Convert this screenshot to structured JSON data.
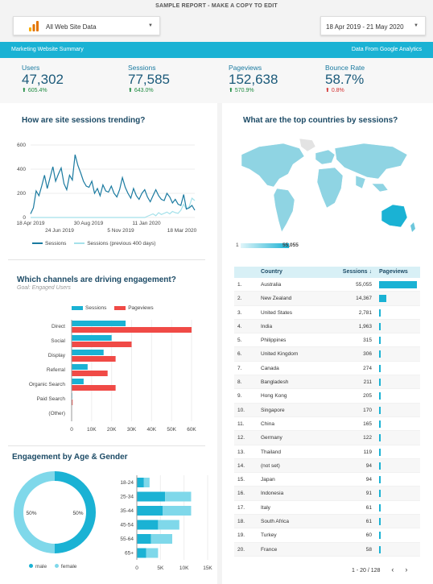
{
  "report_banner": "SAMPLE REPORT - MAKE A COPY TO EDIT",
  "property_selector": {
    "value": "All Web Site Data"
  },
  "date_range": {
    "value": "18 Apr 2019 - 21 May 2020"
  },
  "header_bar": {
    "left": "Marketing Website Summary",
    "right": "Data From Google Analytics"
  },
  "kpis": [
    {
      "label": "Users",
      "value": "47,302",
      "delta": "605.4%",
      "direction": "up"
    },
    {
      "label": "Sessions",
      "value": "77,585",
      "delta": "643.0%",
      "direction": "up"
    },
    {
      "label": "Pageviews",
      "value": "152,638",
      "delta": "570.9%",
      "direction": "up"
    },
    {
      "label": "Bounce Rate",
      "value": "58.7%",
      "delta": "0.8%",
      "direction": "up-bad"
    }
  ],
  "colors": {
    "accent": "#1ab2d4",
    "dark_teal": "#1a7aa0",
    "red": "#f04a46",
    "light": "#7fd8ea",
    "good": "#1d8a40",
    "bad": "#d32f2f"
  },
  "sessions_trend": {
    "title": "How are site sessions trending?",
    "legend": [
      "Sessions",
      "Sessions (previous 400 days)"
    ],
    "chart_data": {
      "type": "line",
      "y_ticks": [
        "0",
        "200",
        "400",
        "600"
      ],
      "ylim": [
        0,
        600
      ],
      "x_ticks_top": [
        "18 Apr 2019",
        "30 Aug 2019",
        "11 Jan 2020"
      ],
      "x_ticks_bottom": [
        "24 Jun 2019",
        "5 Nov 2019",
        "18 Mar 2020"
      ],
      "series": [
        {
          "name": "Sessions",
          "values": [
            30,
            80,
            220,
            180,
            260,
            350,
            240,
            330,
            420,
            300,
            360,
            410,
            280,
            230,
            350,
            310,
            520,
            430,
            370,
            300,
            260,
            250,
            300,
            200,
            240,
            180,
            270,
            220,
            210,
            260,
            200,
            170,
            230,
            330,
            250,
            200,
            160,
            240,
            180,
            150,
            200,
            230,
            170,
            130,
            180,
            230,
            180,
            150,
            140,
            200,
            170,
            120,
            150,
            110,
            100,
            190,
            70,
            80,
            100,
            60
          ]
        },
        {
          "name": "Sessions (previous 400 days)",
          "values": [
            0,
            0,
            0,
            0,
            0,
            0,
            0,
            0,
            0,
            0,
            0,
            0,
            0,
            0,
            0,
            0,
            0,
            0,
            0,
            0,
            0,
            0,
            0,
            0,
            0,
            0,
            0,
            0,
            0,
            0,
            0,
            0,
            0,
            0,
            0,
            0,
            0,
            0,
            0,
            0,
            0,
            0,
            10,
            20,
            30,
            15,
            40,
            25,
            35,
            45,
            30,
            50,
            40,
            35,
            60,
            110,
            70,
            90,
            160,
            140
          ]
        }
      ]
    }
  },
  "countries_map": {
    "title": "What are the top countries by sessions?",
    "scale_min": "1",
    "scale_max": "55,055"
  },
  "channels": {
    "title": "Which channels are driving engagement?",
    "subtitle": "Goal: Engaged Users",
    "legend": [
      "Sessions",
      "Pageviews"
    ],
    "chart_data": {
      "type": "bar",
      "orientation": "horizontal",
      "categories": [
        "Direct",
        "Social",
        "Display",
        "Referral",
        "Organic Search",
        "Paid Search",
        "(Other)"
      ],
      "x_ticks": [
        "0",
        "10K",
        "20K",
        "30K",
        "40K",
        "50K",
        "60K"
      ],
      "xlim": [
        0,
        60000
      ],
      "series": [
        {
          "name": "Sessions",
          "values": [
            27000,
            20000,
            16000,
            8000,
            6000,
            300,
            100
          ]
        },
        {
          "name": "Pageviews",
          "values": [
            60000,
            30000,
            22000,
            18000,
            22000,
            500,
            200
          ]
        }
      ]
    }
  },
  "age_gender": {
    "title": "Engagement by Age & Gender",
    "donut": {
      "chart_data": {
        "type": "pie",
        "slices": [
          {
            "name": "male",
            "value": 50
          },
          {
            "name": "female",
            "value": 50
          }
        ]
      },
      "labels": [
        "50%",
        "50%"
      ],
      "legend": [
        "male",
        "female"
      ]
    },
    "bars": {
      "chart_data": {
        "type": "bar",
        "orientation": "horizontal",
        "stacked": true,
        "categories": [
          "18-24",
          "25-34",
          "35-44",
          "45-54",
          "55-64",
          "65+"
        ],
        "x_ticks": [
          "0",
          "5K",
          "10K",
          "15K"
        ],
        "xlim": [
          0,
          15000
        ],
        "series": [
          {
            "name": "male",
            "values": [
              1500,
              6000,
              5500,
              4500,
              3000,
              2000
            ]
          },
          {
            "name": "female",
            "values": [
              1200,
              5500,
              6000,
              4500,
              4500,
              2500
            ]
          }
        ]
      }
    }
  },
  "country_table": {
    "headers": [
      "Country",
      "Sessions",
      "Pageviews"
    ],
    "sort_indicator": "↓",
    "rows": [
      {
        "rank": "1.",
        "country": "Australia",
        "sessions": "55,055",
        "pv": 1.0
      },
      {
        "rank": "2.",
        "country": "New Zealand",
        "sessions": "14,367",
        "pv": 0.2
      },
      {
        "rank": "3.",
        "country": "United States",
        "sessions": "2,781",
        "pv": 0.04
      },
      {
        "rank": "4.",
        "country": "India",
        "sessions": "1,963",
        "pv": 0.04
      },
      {
        "rank": "5.",
        "country": "Philippines",
        "sessions": "315",
        "pv": 0.02
      },
      {
        "rank": "6.",
        "country": "United Kingdom",
        "sessions": "306",
        "pv": 0.02
      },
      {
        "rank": "7.",
        "country": "Canada",
        "sessions": "274",
        "pv": 0.02
      },
      {
        "rank": "8.",
        "country": "Bangladesh",
        "sessions": "211",
        "pv": 0.02
      },
      {
        "rank": "9.",
        "country": "Hong Kong",
        "sessions": "205",
        "pv": 0.02
      },
      {
        "rank": "10.",
        "country": "Singapore",
        "sessions": "170",
        "pv": 0.02
      },
      {
        "rank": "11.",
        "country": "China",
        "sessions": "165",
        "pv": 0.02
      },
      {
        "rank": "12.",
        "country": "Germany",
        "sessions": "122",
        "pv": 0.02
      },
      {
        "rank": "13.",
        "country": "Thailand",
        "sessions": "119",
        "pv": 0.02
      },
      {
        "rank": "14.",
        "country": "(not set)",
        "sessions": "94",
        "pv": 0.02
      },
      {
        "rank": "15.",
        "country": "Japan",
        "sessions": "94",
        "pv": 0.02
      },
      {
        "rank": "16.",
        "country": "Indonesia",
        "sessions": "91",
        "pv": 0.02
      },
      {
        "rank": "17.",
        "country": "Italy",
        "sessions": "61",
        "pv": 0.02
      },
      {
        "rank": "18.",
        "country": "South Africa",
        "sessions": "61",
        "pv": 0.02
      },
      {
        "rank": "19.",
        "country": "Turkey",
        "sessions": "60",
        "pv": 0.02
      },
      {
        "rank": "20.",
        "country": "France",
        "sessions": "58",
        "pv": 0.02
      }
    ],
    "pagination": "1 - 20 / 128"
  }
}
